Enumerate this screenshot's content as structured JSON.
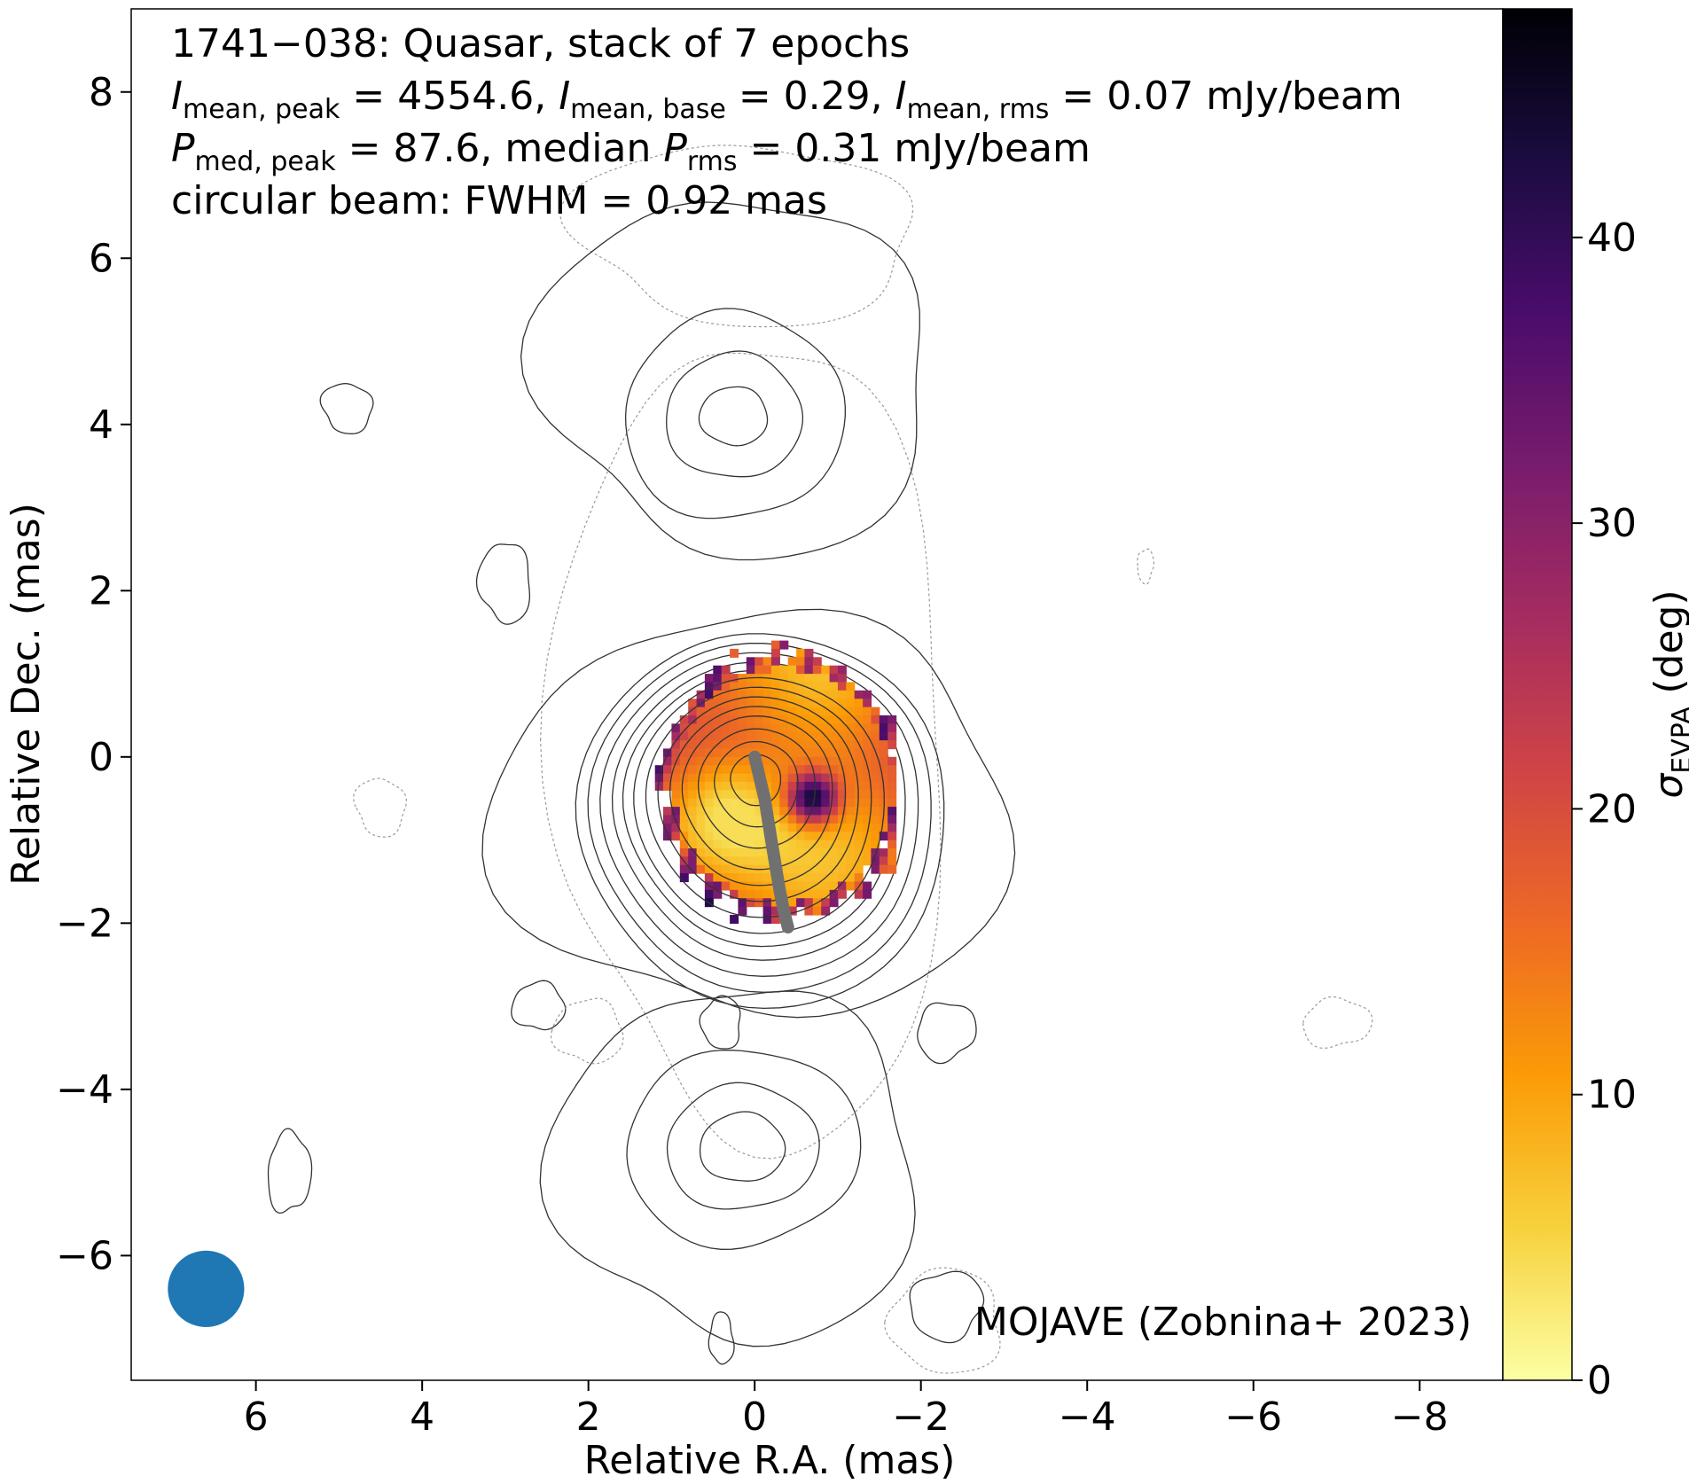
{
  "chart_data": {
    "type": "heatmap",
    "title_lines": [
      "1741−038: Quasar, stack of 7 epochs",
      "",
      "",
      "circular beam: FWHM = 0.92 mas"
    ],
    "title_math": {
      "line2": [
        {
          "sym": "I",
          "sub": "mean, peak",
          "text": " = 4554.6, "
        },
        {
          "sym": "I",
          "sub": "mean, base",
          "text": " = 0.29, "
        },
        {
          "sym": "I",
          "sub": "mean, rms",
          "text": " = 0.07 mJy/beam"
        }
      ],
      "line3": [
        {
          "sym": "P",
          "sub": "med, peak",
          "text": " = 87.6, median "
        },
        {
          "sym": "P",
          "sub": "rms",
          "text": " = 0.31 mJy/beam"
        }
      ]
    },
    "xlabel": "Relative R.A. (mas)",
    "ylabel": "Relative Dec. (mas)",
    "xlim": [
      7.5,
      -9.0
    ],
    "ylim": [
      -7.5,
      9.0
    ],
    "x_ticks": [
      6,
      4,
      2,
      0,
      -2,
      -4,
      -6,
      -8
    ],
    "x_tick_labels": [
      "6",
      "4",
      "2",
      "0",
      "−2",
      "−4",
      "−6",
      "−8"
    ],
    "y_ticks": [
      8,
      6,
      4,
      2,
      0,
      -2,
      -4,
      -6
    ],
    "y_tick_labels": [
      "8",
      "6",
      "4",
      "2",
      "0",
      "−2",
      "−4",
      "−6"
    ],
    "colorbar": {
      "label_symbol": "σ",
      "label_sub": "EVPA",
      "label_unit": " (deg)",
      "range": [
        0,
        48
      ],
      "ticks": [
        0,
        10,
        20,
        30,
        40
      ],
      "tick_labels": [
        "0",
        "10",
        "20",
        "30",
        "40"
      ],
      "colormap": "inferno_r",
      "stops": [
        "#fcffa4",
        "#f7d13d",
        "#fb9b06",
        "#ed6925",
        "#cf4446",
        "#a52c60",
        "#781c6d",
        "#4a0c6b",
        "#1b0c41",
        "#000004"
      ]
    },
    "beam": {
      "x": 6.6,
      "y": -6.4,
      "fwhm": 0.92,
      "color": "#1f77b4"
    },
    "annotation": "MOJAVE (Zobnina+ 2023)",
    "ridge_line": {
      "x": [
        0.0,
        -0.12,
        -0.2,
        -0.25,
        -0.3,
        -0.35,
        -0.4
      ],
      "y": [
        0.0,
        -0.5,
        -1.0,
        -1.3,
        -1.6,
        -1.85,
        -2.05
      ],
      "color": "#707070"
    },
    "sigma_evpa_features": {
      "core_center": [
        -0.3,
        -0.3
      ],
      "core_radius": [
        1.5,
        1.6
      ],
      "low_values_near": [
        0.4,
        -0.7
      ],
      "high_values_near": [
        -0.65,
        -0.45
      ],
      "value_range": [
        4,
        48
      ]
    },
    "stokes_i_contours": [
      {
        "cx": 0.0,
        "cy": -0.2,
        "rx": [
          0.3,
          0.5,
          0.7,
          0.9,
          1.05,
          1.2,
          1.35,
          1.5,
          1.62,
          1.75,
          1.9,
          2.05,
          2.2
        ]
      },
      {
        "cx": 0.25,
        "cy": 4.1,
        "rx": [
          0.4,
          0.8,
          1.3
        ]
      },
      {
        "cx": 0.15,
        "cy": -4.7,
        "rx": [
          0.5,
          0.9,
          1.4
        ]
      }
    ]
  }
}
